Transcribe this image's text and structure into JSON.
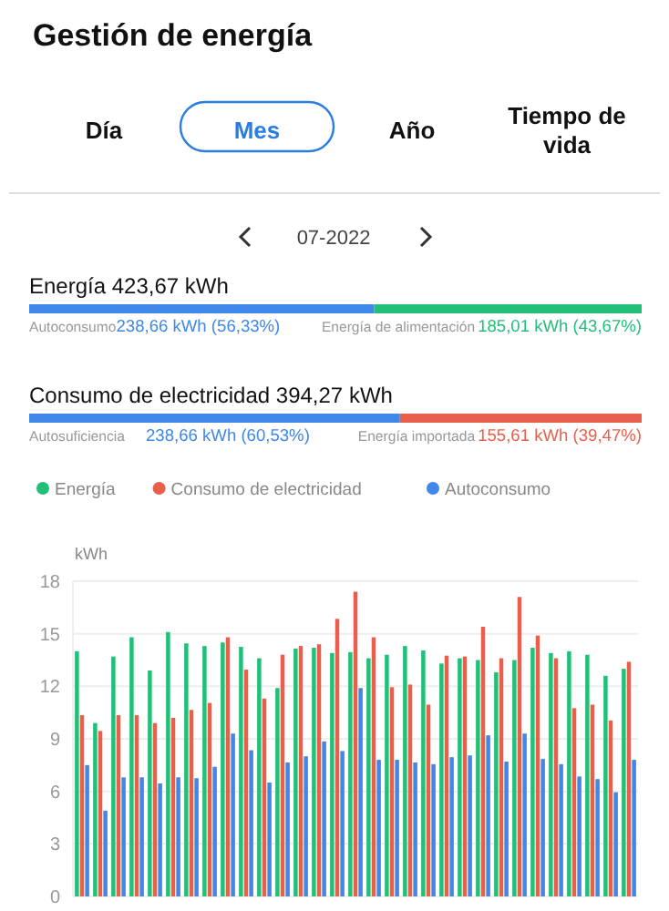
{
  "chart_data": [
    {
      "type": "bar",
      "orientation": "horizontal",
      "stacked": true,
      "title": "Gestión de energía",
      "subtitle": "Energía 423,67 kWh",
      "annotations": [
        "Día",
        "Mes",
        "Año",
        "Tiempo de vida",
        "07-2022"
      ],
      "categories": [
        null
      ],
      "tick_labels": false,
      "series": [
        {
          "name": "Autoconsumo",
          "color": "#3f87e8",
          "values": [
            238.66
          ],
          "value_labels": [
            "238,66 kWh (56,33%)"
          ]
        },
        {
          "name": "Energía de alimentación",
          "color": "#22bf78",
          "values": [
            185.01
          ],
          "value_labels": [
            "185,01 kWh (43,67%)"
          ]
        }
      ]
    },
    {
      "type": "bar",
      "orientation": "horizontal",
      "stacked": true,
      "title": "Consumo de electricidad 394,27 kWh",
      "categories": [
        null
      ],
      "tick_labels": false,
      "series": [
        {
          "name": "Autosuficiencia",
          "color": "#3f87e8",
          "values": [
            238.66
          ],
          "value_labels": [
            "238,66 kWh (60,53%)"
          ]
        },
        {
          "name": "Energía importada",
          "color": "#e8604c",
          "values": [
            155.61
          ],
          "value_labels": [
            "155,61 kWh (39,47%)"
          ]
        }
      ]
    },
    {
      "type": "bar",
      "ylabel": "kWh",
      "categories": [
        null,
        null,
        null,
        null,
        null,
        null,
        null,
        null,
        null,
        null,
        null,
        null,
        null,
        null,
        null,
        null,
        null,
        null,
        null,
        null,
        null,
        null,
        null,
        null,
        null,
        null,
        null,
        null,
        null,
        null,
        null
      ],
      "ylim": [
        0,
        18
      ],
      "yticks": [
        0,
        3,
        6,
        9,
        12,
        15,
        18
      ],
      "grid": "y",
      "legend": "top left",
      "tick_labels": "y",
      "series": [
        {
          "name": "Energía",
          "color": "#22bf78",
          "values": [
            14.0,
            9.9,
            13.7,
            14.8,
            12.9,
            15.1,
            14.45,
            14.3,
            14.5,
            14.25,
            13.6,
            11.9,
            14.15,
            14.2,
            13.9,
            13.95,
            13.6,
            13.8,
            14.3,
            14.05,
            13.3,
            13.6,
            13.5,
            12.8,
            13.5,
            14.2,
            13.9,
            14.0,
            13.8,
            12.6,
            13.0
          ]
        },
        {
          "name": "Consumo de electricidad",
          "color": "#e8604c",
          "values": [
            10.35,
            9.45,
            10.35,
            10.35,
            9.9,
            10.2,
            10.65,
            11.05,
            14.8,
            12.95,
            11.3,
            13.8,
            14.3,
            14.4,
            15.85,
            17.4,
            14.8,
            11.95,
            12.1,
            10.95,
            13.75,
            13.7,
            15.4,
            13.6,
            17.1,
            14.9,
            13.6,
            10.75,
            10.95,
            10.05,
            13.4
          ]
        },
        {
          "name": "Autoconsumo",
          "color": "#3f87e8",
          "values": [
            7.5,
            4.9,
            6.8,
            6.8,
            6.45,
            6.8,
            6.75,
            7.4,
            9.3,
            8.35,
            6.5,
            7.65,
            8.0,
            8.85,
            8.3,
            11.9,
            7.8,
            7.8,
            7.65,
            7.55,
            7.95,
            8.05,
            9.2,
            7.7,
            9.3,
            7.85,
            7.55,
            6.85,
            6.7,
            5.95,
            7.8
          ]
        }
      ]
    }
  ]
}
